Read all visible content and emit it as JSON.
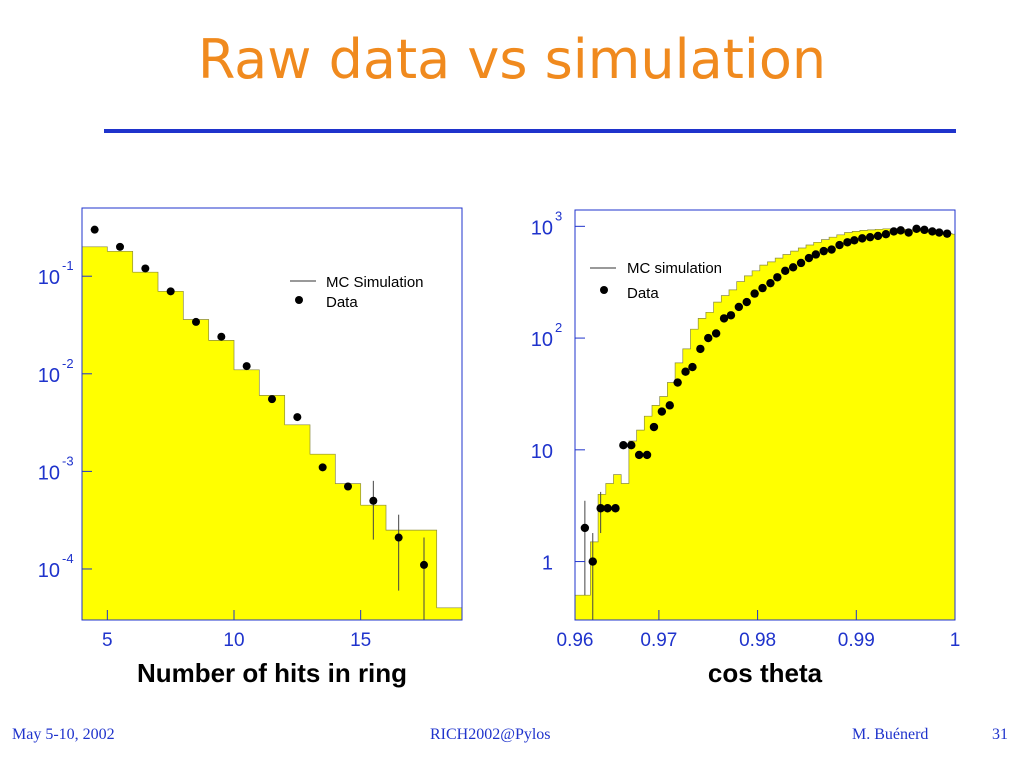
{
  "slide": {
    "title": "Raw data vs simulation",
    "footer_left": "May 5-10, 2002",
    "footer_center": "RICH2002@Pylos",
    "footer_right": "M. Buénerd",
    "page_number": "31"
  },
  "colors": {
    "title": "#f08a1e",
    "rule": "#1f33cc",
    "tick_text": "#1f33cc",
    "fill": "#ffff00",
    "frame": "#1f33cc"
  },
  "chart_data": [
    {
      "type": "bar",
      "xlabel": "Number of hits in ring",
      "ylabel": "",
      "yscale": "log",
      "xlim": [
        4,
        19
      ],
      "ylim": [
        3e-05,
        0.5
      ],
      "xticks": [
        "5",
        "10",
        "15"
      ],
      "yticks": [
        {
          "base": "10",
          "exp": "-1"
        },
        {
          "base": "10",
          "exp": "-2"
        },
        {
          "base": "10",
          "exp": "-3"
        },
        {
          "base": "10",
          "exp": "-4"
        }
      ],
      "legend": {
        "position": "top-right",
        "entries": [
          "MC Simulation",
          "Data"
        ]
      },
      "series": [
        {
          "name": "MC Simulation",
          "style": "histogram",
          "bin_edges": [
            4,
            5,
            6,
            7,
            8,
            9,
            10,
            11,
            12,
            13,
            14,
            15,
            16,
            17,
            18,
            19
          ],
          "values": [
            0.2,
            0.18,
            0.11,
            0.07,
            0.036,
            0.022,
            0.011,
            0.006,
            0.003,
            0.0015,
            0.00075,
            0.00045,
            0.00025,
            0.00025,
            4e-05
          ]
        },
        {
          "name": "Data",
          "style": "points",
          "x": [
            4.5,
            5.5,
            6.5,
            7.5,
            8.5,
            9.5,
            10.5,
            11.5,
            12.5,
            13.5,
            14.5,
            15.5,
            16.5,
            17.5
          ],
          "y": [
            0.3,
            0.2,
            0.12,
            0.07,
            0.034,
            0.024,
            0.012,
            0.0055,
            0.0036,
            0.0011,
            0.0007,
            0.0005,
            0.00021,
            0.00011
          ],
          "err": [
            0,
            0,
            0,
            0,
            0,
            0,
            0,
            0,
            0,
            0,
            0,
            0.0003,
            0.00015,
            0.0001
          ]
        }
      ]
    },
    {
      "type": "bar",
      "xlabel": "cos theta",
      "ylabel": "",
      "yscale": "log",
      "xlim": [
        0.9615,
        1.0
      ],
      "ylim": [
        0.3,
        1400
      ],
      "xticks": [
        "0.96",
        "0.97",
        "0.98",
        "0.99",
        "1"
      ],
      "xtick_values": [
        0.96,
        0.97,
        0.98,
        0.99,
        1.0
      ],
      "yticks": [
        {
          "base": "10",
          "exp": "3",
          "value": 1000
        },
        {
          "base": "10",
          "exp": "2",
          "value": 100
        },
        {
          "base": "10",
          "exp": "",
          "value": 10
        },
        {
          "base": "1",
          "exp": "",
          "value": 1
        }
      ],
      "legend": {
        "position": "top-left",
        "entries": [
          "MC simulation",
          "Data"
        ]
      },
      "series": [
        {
          "name": "MC simulation",
          "style": "histogram",
          "bin_start": 0.9615,
          "bin_width": 0.00078,
          "values": [
            0.5,
            0.5,
            1.5,
            4,
            5,
            6,
            5,
            12,
            15,
            20,
            25,
            30,
            40,
            60,
            80,
            120,
            150,
            170,
            210,
            240,
            270,
            320,
            360,
            400,
            450,
            480,
            520,
            560,
            600,
            640,
            680,
            720,
            760,
            800,
            840,
            880,
            900,
            920,
            930,
            940,
            950,
            950,
            940,
            930,
            920,
            900,
            890,
            880,
            860,
            850
          ]
        },
        {
          "name": "Data",
          "style": "points",
          "x": [
            0.9625,
            0.9633,
            0.9641,
            0.9648,
            0.9656,
            0.9664,
            0.9672,
            0.968,
            0.9688,
            0.9695,
            0.9703,
            0.9711,
            0.9719,
            0.9727,
            0.9734,
            0.9742,
            0.975,
            0.9758,
            0.9766,
            0.9773,
            0.9781,
            0.9789,
            0.9797,
            0.9805,
            0.9813,
            0.982,
            0.9828,
            0.9836,
            0.9844,
            0.9852,
            0.9859,
            0.9867,
            0.9875,
            0.9883,
            0.9891,
            0.9898,
            0.9906,
            0.9914,
            0.9922,
            0.993,
            0.9938,
            0.9945,
            0.9953,
            0.9961,
            0.9969,
            0.9977,
            0.9984,
            0.9992
          ],
          "y": [
            2,
            1,
            3,
            3,
            3,
            11,
            11,
            9,
            9,
            16,
            22,
            25,
            40,
            50,
            55,
            80,
            100,
            110,
            150,
            160,
            190,
            210,
            250,
            280,
            310,
            350,
            400,
            430,
            470,
            520,
            560,
            600,
            620,
            680,
            720,
            750,
            780,
            800,
            820,
            850,
            900,
            920,
            880,
            950,
            930,
            900,
            880,
            860
          ],
          "err": [
            1.5,
            0.8,
            1.2,
            0,
            0,
            0,
            0,
            0,
            0,
            0,
            0,
            0,
            0,
            0,
            0,
            0,
            0,
            0,
            0,
            0,
            0,
            0,
            0,
            0,
            0,
            0,
            0,
            0,
            0,
            0,
            0,
            0,
            0,
            0,
            0,
            0,
            0,
            0,
            0,
            0,
            0,
            0,
            0,
            0,
            0,
            0,
            0,
            0
          ]
        }
      ]
    }
  ]
}
